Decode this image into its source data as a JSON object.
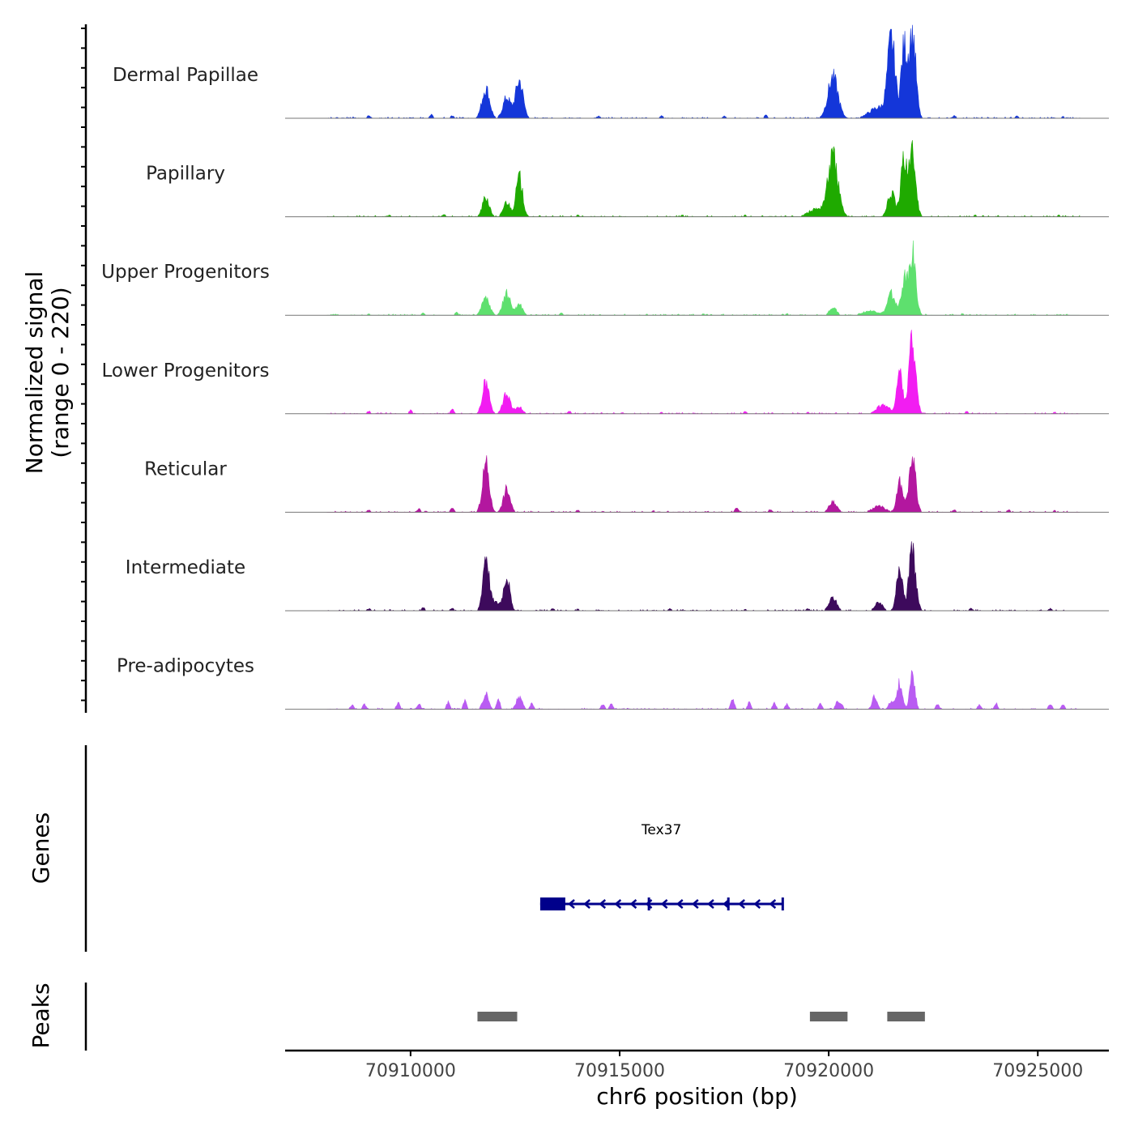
{
  "chart_data": {
    "type": "area",
    "title": "",
    "xlabel": "chr6 position (bp)",
    "ylabel_line1": "Normalized signal",
    "ylabel_line2": "(range 0 - 220)",
    "y_range": [
      0,
      220
    ],
    "xlim": [
      70907000,
      70926700
    ],
    "x_ticks": [
      70910000,
      70915000,
      70920000,
      70925000
    ],
    "x_tick_labels": [
      "70910000",
      "70915000",
      "70920000",
      "70925000"
    ],
    "signal_extent": [
      70908000,
      70926000
    ],
    "tracks": [
      {
        "name": "Dermal Papillae",
        "color": "#1436d9",
        "peaks": [
          [
            70911800,
            70,
            90
          ],
          [
            70912300,
            48,
            90
          ],
          [
            70912600,
            88,
            90
          ],
          [
            70920100,
            95,
            120
          ],
          [
            70921500,
            175,
            90
          ],
          [
            70921800,
            160,
            70
          ],
          [
            70922000,
            205,
            80
          ],
          [
            70921200,
            25,
            220
          ]
        ],
        "spikes": [
          [
            70909000,
            6
          ],
          [
            70910500,
            8
          ],
          [
            70911000,
            6
          ],
          [
            70914500,
            5
          ],
          [
            70916000,
            6
          ],
          [
            70917500,
            5
          ],
          [
            70918500,
            7
          ],
          [
            70923000,
            6
          ],
          [
            70924500,
            5
          ],
          [
            70925600,
            4
          ]
        ]
      },
      {
        "name": "Papillary",
        "color": "#1faa00",
        "peaks": [
          [
            70911800,
            45,
            80
          ],
          [
            70912300,
            35,
            80
          ],
          [
            70912600,
            90,
            80
          ],
          [
            70920100,
            140,
            120
          ],
          [
            70921500,
            55,
            90
          ],
          [
            70921800,
            135,
            70
          ],
          [
            70922000,
            150,
            80
          ],
          [
            70919700,
            18,
            180
          ]
        ],
        "spikes": [
          [
            70909500,
            4
          ],
          [
            70910800,
            5
          ],
          [
            70914000,
            4
          ],
          [
            70916500,
            4
          ],
          [
            70918000,
            4
          ],
          [
            70923500,
            4
          ],
          [
            70925500,
            4
          ]
        ]
      },
      {
        "name": "Upper Progenitors",
        "color": "#5ee06e",
        "peaks": [
          [
            70911800,
            40,
            90
          ],
          [
            70912300,
            50,
            90
          ],
          [
            70912600,
            25,
            80
          ],
          [
            70920100,
            20,
            80
          ],
          [
            70921500,
            50,
            90
          ],
          [
            70921800,
            80,
            70
          ],
          [
            70922000,
            145,
            80
          ],
          [
            70921000,
            10,
            200
          ]
        ],
        "spikes": [
          [
            70909000,
            4
          ],
          [
            70910300,
            6
          ],
          [
            70911100,
            6
          ],
          [
            70913600,
            5
          ],
          [
            70917000,
            4
          ],
          [
            70919000,
            4
          ],
          [
            70923200,
            4
          ],
          [
            70924800,
            3
          ]
        ]
      },
      {
        "name": "Lower Progenitors",
        "color": "#f21df2",
        "peaks": [
          [
            70911800,
            75,
            80
          ],
          [
            70912300,
            45,
            90
          ],
          [
            70912600,
            15,
            80
          ],
          [
            70921700,
            95,
            70
          ],
          [
            70922000,
            175,
            80
          ],
          [
            70921300,
            20,
            150
          ]
        ],
        "spikes": [
          [
            70909000,
            6
          ],
          [
            70910000,
            8
          ],
          [
            70911000,
            10
          ],
          [
            70913800,
            6
          ],
          [
            70916000,
            4
          ],
          [
            70918000,
            5
          ],
          [
            70919500,
            4
          ],
          [
            70923300,
            5
          ],
          [
            70925400,
            4
          ]
        ]
      },
      {
        "name": "Reticular",
        "color": "#b3179f",
        "peaks": [
          [
            70911800,
            115,
            80
          ],
          [
            70912300,
            55,
            80
          ],
          [
            70920100,
            25,
            90
          ],
          [
            70921700,
            70,
            70
          ],
          [
            70922000,
            125,
            80
          ],
          [
            70921200,
            14,
            150
          ]
        ],
        "spikes": [
          [
            70909000,
            5
          ],
          [
            70910200,
            8
          ],
          [
            70911000,
            10
          ],
          [
            70914000,
            5
          ],
          [
            70915800,
            4
          ],
          [
            70917800,
            12
          ],
          [
            70918600,
            6
          ],
          [
            70923000,
            6
          ],
          [
            70924300,
            6
          ],
          [
            70925400,
            4
          ]
        ]
      },
      {
        "name": "Intermediate",
        "color": "#3d0a5c",
        "peaks": [
          [
            70911800,
            125,
            70
          ],
          [
            70912300,
            80,
            70
          ],
          [
            70912000,
            20,
            160
          ],
          [
            70920100,
            30,
            90
          ],
          [
            70921200,
            20,
            90
          ],
          [
            70921700,
            110,
            70
          ],
          [
            70922000,
            140,
            80
          ]
        ],
        "spikes": [
          [
            70909000,
            5
          ],
          [
            70910300,
            7
          ],
          [
            70911000,
            6
          ],
          [
            70913400,
            5
          ],
          [
            70914000,
            4
          ],
          [
            70916200,
            5
          ],
          [
            70918000,
            4
          ],
          [
            70919500,
            5
          ],
          [
            70923400,
            5
          ],
          [
            70925300,
            5
          ]
        ]
      },
      {
        "name": "Pre-adipocytes",
        "color": "#b95cf2",
        "peaks": [
          [
            70911800,
            35,
            70
          ],
          [
            70912600,
            30,
            70
          ],
          [
            70921700,
            65,
            60
          ],
          [
            70922000,
            85,
            60
          ],
          [
            70921100,
            30,
            60
          ],
          [
            70921500,
            20,
            60
          ]
        ],
        "spikes": [
          [
            70908600,
            10
          ],
          [
            70908900,
            12
          ],
          [
            70909700,
            15
          ],
          [
            70910200,
            12
          ],
          [
            70910900,
            16
          ],
          [
            70911300,
            20
          ],
          [
            70912100,
            22
          ],
          [
            70912900,
            14
          ],
          [
            70914600,
            12
          ],
          [
            70914800,
            12
          ],
          [
            70917700,
            25
          ],
          [
            70918100,
            15
          ],
          [
            70918700,
            15
          ],
          [
            70919000,
            12
          ],
          [
            70919800,
            12
          ],
          [
            70920200,
            18
          ],
          [
            70920300,
            12
          ],
          [
            70922600,
            12
          ],
          [
            70923600,
            10
          ],
          [
            70924000,
            14
          ],
          [
            70925300,
            14
          ],
          [
            70925600,
            10
          ]
        ]
      }
    ],
    "genes_label": "Genes",
    "gene": {
      "name": "Tex37",
      "start": 70913100,
      "end": 70918900,
      "strand": "-",
      "utr": [
        70913100,
        70913700
      ],
      "exon_marks": [
        70915700,
        70917600,
        70918900
      ],
      "color": "#00008b"
    },
    "peaks_label": "Peaks",
    "peak_regions": [
      [
        70911600,
        70912550
      ],
      [
        70919550,
        70920450
      ],
      [
        70921400,
        70922300
      ]
    ],
    "peak_color": "#666666"
  }
}
